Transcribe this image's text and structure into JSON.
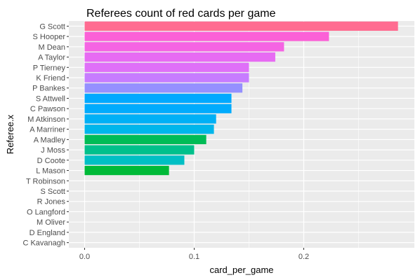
{
  "chart_data": {
    "type": "bar",
    "orientation": "horizontal",
    "title": "Referees count of red cards per game",
    "xlabel": "card_per_game",
    "ylabel": "Referee.x",
    "xlim": [
      0,
      0.3
    ],
    "x_ticks": [
      "0.0",
      "0.1",
      "0.2"
    ],
    "grid": true,
    "legend": "none",
    "categories": [
      "G Scott",
      "S Hooper",
      "M Dean",
      "A Taylor",
      "P Tierney",
      "K Friend",
      "P Bankes",
      "S Attwell",
      "C Pawson",
      "M Atkinson",
      "A Marriner",
      "A Madley",
      "J Moss",
      "D Coote",
      "L Mason",
      "T Robinson",
      "S Scott",
      "R Jones",
      "O Langford",
      "M Oliver",
      "D England",
      "C Kavanagh"
    ],
    "values": [
      0.286,
      0.223,
      0.182,
      0.174,
      0.15,
      0.15,
      0.144,
      0.134,
      0.134,
      0.12,
      0.118,
      0.111,
      0.1,
      0.091,
      0.077,
      0,
      0,
      0,
      0,
      0,
      0,
      0
    ],
    "colors": [
      "#FF6C91",
      "#FB61D7",
      "#F564E3",
      "#E76BF3",
      "#DF70F8",
      "#C77CFF",
      "#9590FF",
      "#00A9FF",
      "#00ABFD",
      "#00B0F6",
      "#00B6EB",
      "#00BC56",
      "#00C08B",
      "#00BFC4",
      "#00BA38",
      "#7CAE00",
      "#A3A500",
      "#C49A00",
      "#D89000",
      "#E58700",
      "#F8766D",
      "#F8766D"
    ],
    "panel_background": "#EBEBEB",
    "grid_color": "#FFFFFF"
  }
}
